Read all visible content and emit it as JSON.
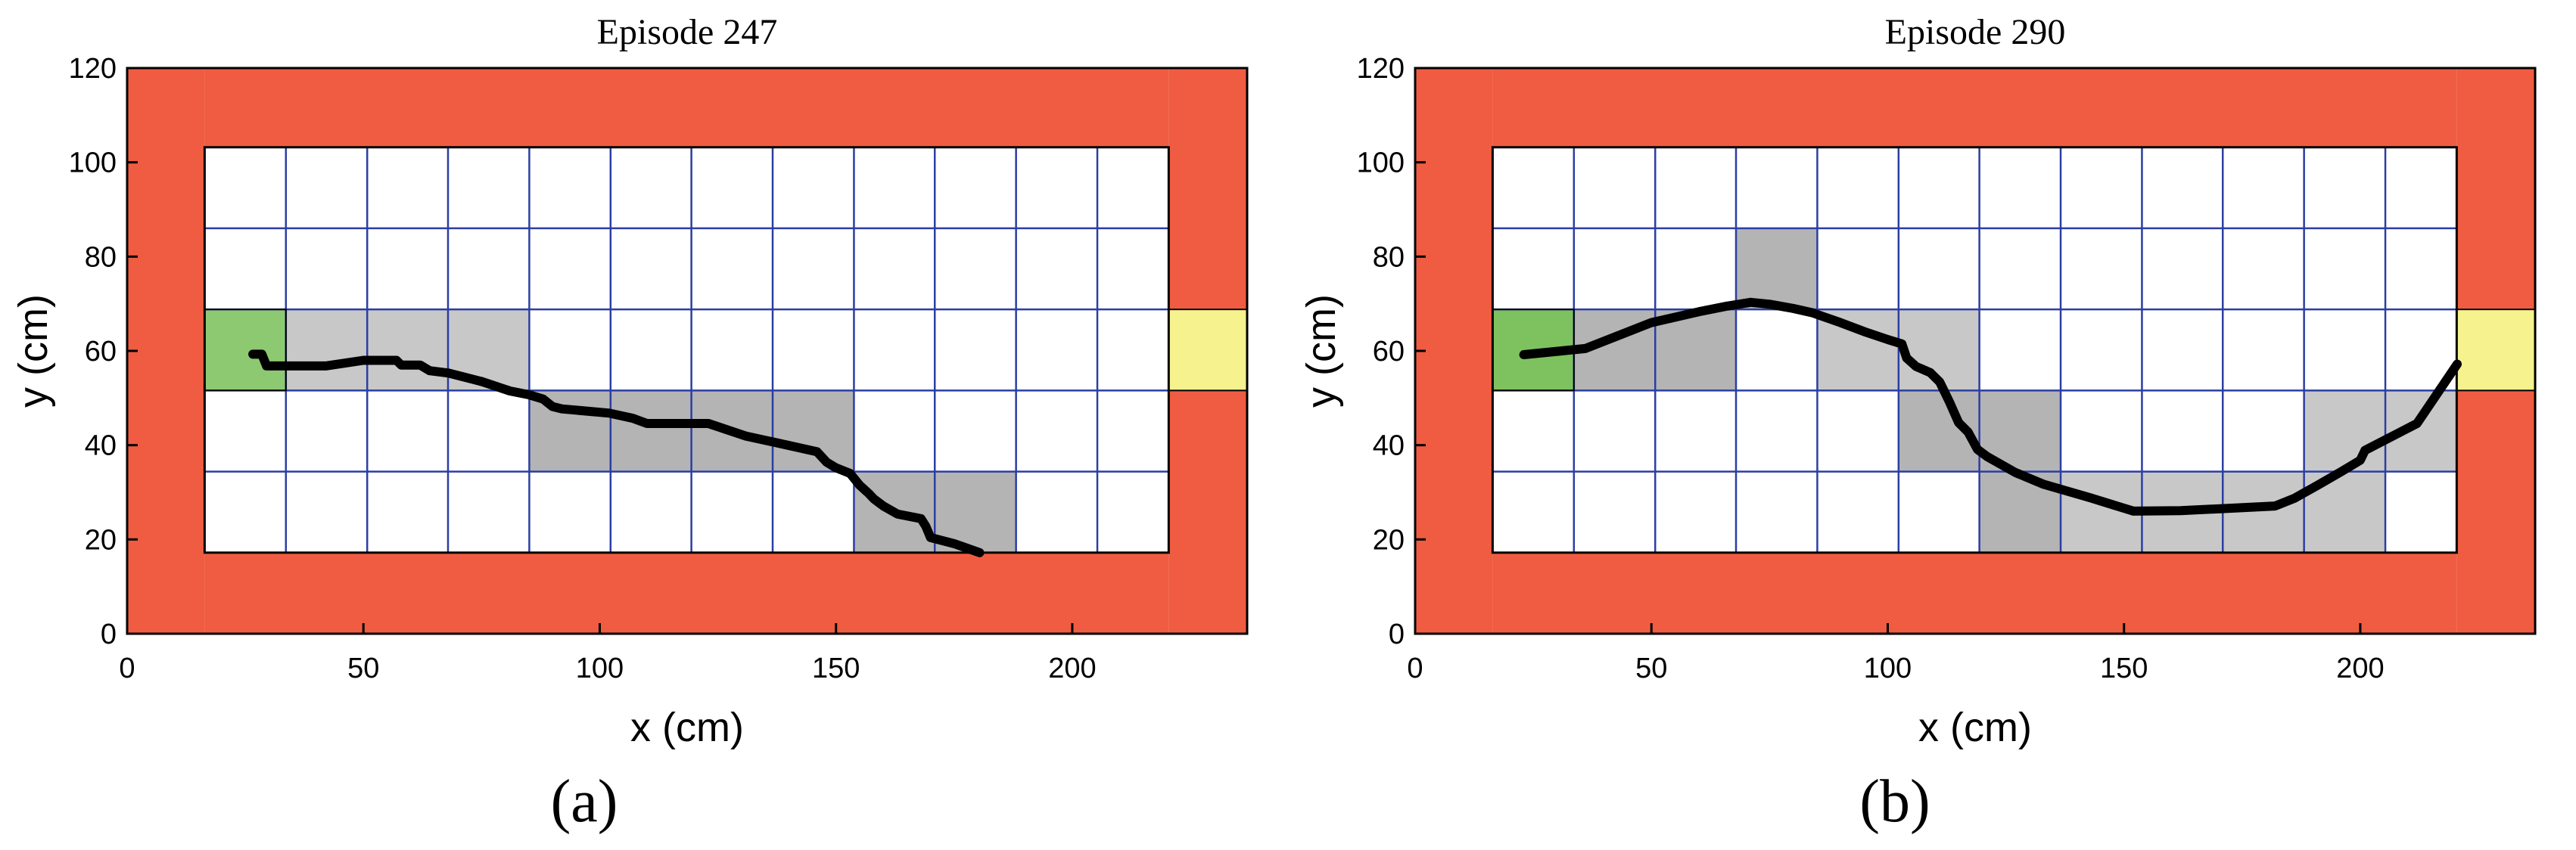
{
  "chart_data": [
    {
      "type": "line",
      "title": "Episode 247",
      "xlabel": "x (cm)",
      "ylabel": "y (cm)",
      "panel_label": "(a)",
      "xlim": [
        0,
        237
      ],
      "ylim": [
        0,
        120
      ],
      "xticks": [
        0,
        50,
        100,
        150,
        200
      ],
      "yticks": [
        0,
        20,
        40,
        60,
        80,
        100,
        120
      ],
      "grid_x": [
        16.4,
        33.6,
        50.8,
        67.9,
        85.1,
        102.3,
        119.4,
        136.6,
        153.8,
        170.9,
        188.1,
        205.3,
        220.4
      ],
      "grid_y": [
        17.2,
        34.4,
        51.6,
        68.8,
        86.0,
        103.2
      ],
      "colors": {
        "wall": "#f05c42",
        "start": "#8dc971",
        "goal": "#f6f28e",
        "visited_light": "#c8c8c8",
        "visited_dark": "#b4b4b4",
        "grid": "#2b3ea3",
        "path": "#000000"
      },
      "walls": [
        [
          0,
          16.4,
          0,
          120
        ],
        [
          220.4,
          237,
          0,
          120
        ],
        [
          16.4,
          220.4,
          0,
          17.2
        ],
        [
          16.4,
          220.4,
          103.2,
          120
        ]
      ],
      "start_cell": [
        16.4,
        33.6,
        51.6,
        68.8
      ],
      "goal_cell": [
        220.4,
        237,
        51.6,
        68.8
      ],
      "visited_cells": [
        [
          33.6,
          50.8,
          51.6,
          68.8,
          0
        ],
        [
          50.8,
          67.9,
          51.6,
          68.8,
          0
        ],
        [
          67.9,
          85.1,
          51.6,
          68.8,
          0
        ],
        [
          85.1,
          102.3,
          34.4,
          51.6,
          1
        ],
        [
          102.3,
          119.4,
          34.4,
          51.6,
          1
        ],
        [
          119.4,
          136.6,
          34.4,
          51.6,
          1
        ],
        [
          136.6,
          153.8,
          34.4,
          51.6,
          1
        ],
        [
          153.8,
          170.9,
          17.2,
          34.4,
          1
        ],
        [
          170.9,
          188.1,
          17.2,
          34.4,
          1
        ]
      ],
      "path": {
        "x": [
          26.6,
          28.5,
          29.5,
          33,
          42,
          50,
          54,
          57,
          58,
          62,
          64,
          68,
          75,
          81,
          85,
          88,
          90,
          92,
          102,
          107,
          110,
          120,
          123,
          131,
          137,
          146,
          148,
          150,
          153,
          155,
          156,
          157,
          158,
          160,
          163,
          168,
          169,
          170,
          175,
          180.4
        ],
        "y": [
          59.3,
          59.3,
          56.8,
          56.8,
          56.8,
          58,
          58,
          58,
          57,
          57,
          55.8,
          55.3,
          53.5,
          51.5,
          50.7,
          49.8,
          48.2,
          47.7,
          46.8,
          45.7,
          44.6,
          44.6,
          44.6,
          41.9,
          40.6,
          38.6,
          36.4,
          35.2,
          34,
          31.5,
          30.6,
          29.7,
          28.6,
          27.1,
          25.4,
          24.4,
          22.8,
          20.4,
          19.1,
          17.2
        ]
      }
    },
    {
      "type": "line",
      "title": "Episode 290",
      "xlabel": "x (cm)",
      "ylabel": "y (cm)",
      "panel_label": "(b)",
      "xlim": [
        0,
        237
      ],
      "ylim": [
        0,
        120
      ],
      "xticks": [
        0,
        50,
        100,
        150,
        200
      ],
      "yticks": [
        0,
        20,
        40,
        60,
        80,
        100,
        120
      ],
      "grid_x": [
        16.4,
        33.6,
        50.8,
        67.9,
        85.1,
        102.3,
        119.4,
        136.6,
        153.8,
        170.9,
        188.1,
        205.3,
        220.4
      ],
      "grid_y": [
        17.2,
        34.4,
        51.6,
        68.8,
        86.0,
        103.2
      ],
      "colors": {
        "wall": "#f05c42",
        "start": "#7dc25e",
        "goal": "#f6f28e",
        "visited_light": "#c8c8c8",
        "visited_dark": "#b4b4b4",
        "grid": "#2b3ea3",
        "path": "#000000"
      },
      "walls": [
        [
          0,
          16.4,
          0,
          120
        ],
        [
          220.4,
          237,
          0,
          120
        ],
        [
          16.4,
          220.4,
          0,
          17.2
        ],
        [
          16.4,
          220.4,
          103.2,
          120
        ]
      ],
      "start_cell": [
        16.4,
        33.6,
        51.6,
        68.8
      ],
      "goal_cell": [
        220.4,
        237,
        51.6,
        68.8
      ],
      "visited_cells": [
        [
          33.6,
          50.8,
          51.6,
          68.8,
          1
        ],
        [
          50.8,
          67.9,
          51.6,
          68.8,
          1
        ],
        [
          67.9,
          85.1,
          68.8,
          86.0,
          1
        ],
        [
          85.1,
          102.3,
          51.6,
          68.8,
          0
        ],
        [
          102.3,
          119.4,
          51.6,
          68.8,
          0
        ],
        [
          102.3,
          119.4,
          34.4,
          51.6,
          1
        ],
        [
          119.4,
          136.6,
          34.4,
          51.6,
          1
        ],
        [
          119.4,
          136.6,
          17.2,
          34.4,
          1
        ],
        [
          136.6,
          153.8,
          17.2,
          34.4,
          0
        ],
        [
          153.8,
          170.9,
          17.2,
          34.4,
          0
        ],
        [
          170.9,
          188.1,
          17.2,
          34.4,
          0
        ],
        [
          188.1,
          205.3,
          17.2,
          34.4,
          0
        ],
        [
          188.1,
          205.3,
          34.4,
          51.6,
          0
        ],
        [
          205.3,
          220.4,
          34.4,
          51.6,
          0
        ]
      ],
      "path": {
        "x": [
          23,
          36,
          50,
          60,
          66,
          71,
          75,
          80,
          84,
          90,
          95,
          100,
          103,
          104,
          106,
          109,
          111,
          113,
          115,
          117,
          119,
          121,
          127,
          133,
          143,
          152,
          162,
          172,
          182,
          186,
          191,
          196,
          200,
          201,
          212,
          220.5
        ],
        "y": [
          59.2,
          60.5,
          66,
          68.3,
          69.5,
          70.3,
          69.9,
          69,
          68.1,
          66,
          64.1,
          62.4,
          61.5,
          58.5,
          56.7,
          55.4,
          53.4,
          49.3,
          44.8,
          42.8,
          39.1,
          37.6,
          34.2,
          31.7,
          28.8,
          26,
          26.1,
          26.6,
          27.1,
          28.7,
          31.5,
          34.4,
          36.8,
          38.9,
          44.6,
          57.2
        ]
      }
    }
  ]
}
